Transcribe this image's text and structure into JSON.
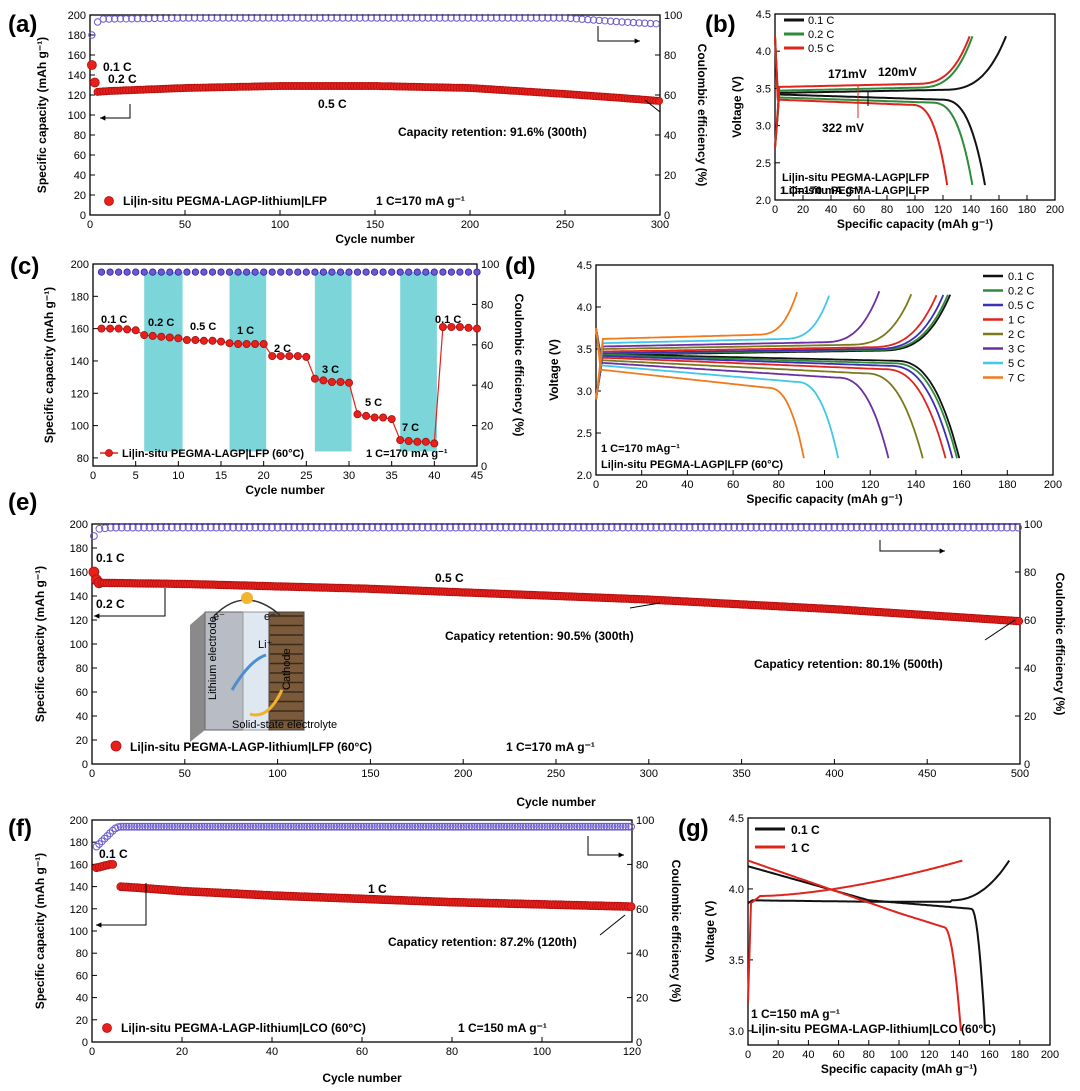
{
  "colors": {
    "capacity": "#e8201c",
    "coulombic": "#6a5acd",
    "teal": "#4fc7cc",
    "black": "#111111",
    "green": "#2e8b3a",
    "red": "#e0241c"
  },
  "chart_data": [
    {
      "id": "a",
      "type": "scatter",
      "panel_label": "(a)",
      "xlabel": "Cycle number",
      "ylabel": "Specific capacity (mAh g⁻¹)",
      "y2label": "Coulombic efficiency (%)",
      "xlim": [
        0,
        300
      ],
      "ylim": [
        0,
        200
      ],
      "y2lim": [
        0,
        100
      ],
      "xticks": [
        "0",
        "50",
        "100",
        "150",
        "200",
        "250",
        "300"
      ],
      "yticks": [
        "0",
        "20",
        "40",
        "60",
        "80",
        "100",
        "120",
        "140",
        "160",
        "180",
        "200"
      ],
      "y2ticks": [
        "0",
        "20",
        "40",
        "60",
        "80",
        "100"
      ],
      "capacity": {
        "x": [
          1,
          2,
          3,
          10,
          50,
          100,
          150,
          200,
          250,
          280,
          300
        ],
        "y": [
          150,
          142,
          123,
          124,
          127,
          129,
          129,
          127,
          121,
          117,
          114
        ]
      },
      "efficiency": {
        "x": [
          1,
          2,
          3,
          5,
          10,
          50,
          150,
          250,
          280,
          300
        ],
        "y": [
          90,
          87,
          95,
          98,
          98,
          98.5,
          98.5,
          98.5,
          96.5,
          95.5
        ]
      },
      "annotations": [
        "0.1 C",
        "0.2 C",
        "0.5 C",
        "Capacity retention: 91.6% (300th)"
      ],
      "legend": "Li|in-situ PEGMA-LAGP-lithium|LFP",
      "rate_note": "1 C=170 mA g⁻¹"
    },
    {
      "id": "b",
      "type": "line",
      "panel_label": "(b)",
      "xlabel": "Specific capacity (mAh g⁻¹)",
      "ylabel": "Voltage (V)",
      "xlim": [
        0,
        200
      ],
      "ylim": [
        2.0,
        4.5
      ],
      "xticks": [
        "0",
        "20",
        "40",
        "60",
        "80",
        "100",
        "120",
        "140",
        "160",
        "180",
        "200"
      ],
      "yticks": [
        "2.0",
        "2.5",
        "3.0",
        "3.5",
        "4.0",
        "4.5"
      ],
      "series": [
        {
          "name": "0.1 C",
          "color": "black",
          "charge_end": 165,
          "discharge_end": 150,
          "vch": 3.44,
          "vdis": 3.37
        },
        {
          "name": "0.2 C",
          "color": "green",
          "charge_end": 141,
          "discharge_end": 141,
          "vch": 3.47,
          "vdis": 3.33
        },
        {
          "name": "0.5 C",
          "color": "red",
          "charge_end": 139,
          "discharge_end": 123,
          "vch": 3.52,
          "vdis": 3.3
        }
      ],
      "annotations": [
        "171mV",
        "120mV",
        "322 mV"
      ],
      "cell_note": "Li|in-situ PEGMA-LAGP|LFP",
      "rate_note": "1 C=170 mA g⁻¹"
    },
    {
      "id": "c",
      "type": "scatter",
      "panel_label": "(c)",
      "xlabel": "Cycle number",
      "ylabel": "Specific capacity (mAh g⁻¹)",
      "y2label": "Coulombic efficiency (%)",
      "xlim": [
        0,
        45
      ],
      "ylim": [
        75,
        200
      ],
      "y2lim": [
        0,
        100
      ],
      "xticks": [
        "0",
        "5",
        "10",
        "15",
        "20",
        "25",
        "30",
        "35",
        "40",
        "45"
      ],
      "yticks": [
        "80",
        "100",
        "120",
        "140",
        "160",
        "180",
        "200"
      ],
      "y2ticks": [
        "0",
        "20",
        "40",
        "60",
        "80",
        "100"
      ],
      "rate_labels": [
        "0.1 C",
        "0.2 C",
        "0.5 C",
        "1 C",
        "2 C",
        "3 C",
        "5 C",
        "7 C",
        "0.1 C"
      ],
      "capacity_y": [
        160,
        160,
        160,
        159.5,
        159,
        156,
        155.5,
        155,
        154.5,
        154,
        153,
        153,
        152.5,
        152.5,
        152,
        151,
        150.5,
        150.5,
        150.5,
        150.5,
        143,
        143,
        143,
        143,
        142.5,
        129,
        128,
        127,
        127,
        126.5,
        107,
        106,
        105,
        105,
        104,
        91,
        90.5,
        90,
        90,
        89,
        161,
        161,
        161,
        160.5,
        160
      ],
      "efficiency_y": 96,
      "legend": "Li|in-situ PEGMA-LAGP|LFP (60°C)",
      "rate_note": "1 C=170 mA g⁻¹"
    },
    {
      "id": "d",
      "type": "line",
      "panel_label": "(d)",
      "xlabel": "Specific capacity (mAh g⁻¹)",
      "ylabel": "Voltage (V)",
      "xlim": [
        0,
        200
      ],
      "ylim": [
        2.0,
        4.5
      ],
      "xticks": [
        "0",
        "20",
        "40",
        "60",
        "80",
        "100",
        "120",
        "140",
        "160",
        "180",
        "200"
      ],
      "yticks": [
        "2.0",
        "2.5",
        "3.0",
        "3.5",
        "4.0",
        "4.5"
      ],
      "series": [
        {
          "name": "0.1 C",
          "color": "#111111",
          "cap": 159,
          "vch": 3.43,
          "vdis": 3.4
        },
        {
          "name": "0.2 C",
          "color": "#2e8b3a",
          "cap": 158,
          "vch": 3.44,
          "vdis": 3.39
        },
        {
          "name": "0.5 C",
          "color": "#3c2fb8",
          "cap": 156,
          "vch": 3.45,
          "vdis": 3.38
        },
        {
          "name": "1 C",
          "color": "#e0241c",
          "cap": 153,
          "vch": 3.47,
          "vdis": 3.36
        },
        {
          "name": "2 C",
          "color": "#7a7a1c",
          "cap": 143,
          "vch": 3.5,
          "vdis": 3.33
        },
        {
          "name": "3 C",
          "color": "#6b2fa3",
          "cap": 128,
          "vch": 3.53,
          "vdis": 3.3
        },
        {
          "name": "5 C",
          "color": "#41c7e8",
          "cap": 106,
          "vch": 3.57,
          "vdis": 3.27
        },
        {
          "name": "7 C",
          "color": "#f07a1e",
          "cap": 91,
          "vch": 3.62,
          "vdis": 3.22
        }
      ],
      "rate_note": "1 C=170 mAg⁻¹",
      "cell_note": "Li|in-situ PEGMA-LAGP|LFP (60°C)"
    },
    {
      "id": "e",
      "type": "scatter",
      "panel_label": "(e)",
      "xlabel": "Cycle number",
      "ylabel": "Specific capacity (mAh g⁻¹)",
      "y2label": "Coulombic efficiency (%)",
      "xlim": [
        0,
        500
      ],
      "ylim": [
        0,
        200
      ],
      "y2lim": [
        0,
        100
      ],
      "xticks": [
        "0",
        "50",
        "100",
        "150",
        "200",
        "250",
        "300",
        "350",
        "400",
        "450",
        "500"
      ],
      "yticks": [
        "0",
        "20",
        "40",
        "60",
        "80",
        "100",
        "120",
        "140",
        "160",
        "180",
        "200"
      ],
      "y2ticks": [
        "0",
        "20",
        "40",
        "60",
        "80",
        "100"
      ],
      "capacity": {
        "x": [
          1,
          2,
          3,
          50,
          100,
          150,
          200,
          250,
          300,
          350,
          400,
          450,
          500
        ],
        "y": [
          160,
          155,
          151,
          150,
          148,
          146,
          143,
          140,
          137,
          133,
          129,
          124,
          119
        ]
      },
      "efficiency": {
        "x": [
          1,
          2,
          4,
          10,
          100,
          200,
          300,
          400,
          500
        ],
        "y": [
          95,
          96,
          98,
          98.5,
          98.5,
          98.5,
          98.5,
          98.5,
          98.5
        ]
      },
      "annotations": [
        "0.1 C",
        "0.2 C",
        "0.5 C",
        "Capaticy retention: 90.5% (300th)",
        "Capaticy retention: 80.1% (500th)"
      ],
      "inset_labels": [
        "Lithium electrode",
        "Li⁺",
        "Solid-state electrolyte",
        "Cathode",
        "e⁻",
        "e⁻"
      ],
      "legend": "Li|in-situ PEGMA-LAGP-lithium|LFP (60°C)",
      "rate_note": "1 C=170 mA g⁻¹"
    },
    {
      "id": "f",
      "type": "scatter",
      "panel_label": "(f)",
      "xlabel": "Cycle number",
      "ylabel": "Specific capacity (mAh g⁻¹)",
      "y2label": "Coulombic efficiency (%)",
      "xlim": [
        0,
        120
      ],
      "ylim": [
        0,
        200
      ],
      "y2lim": [
        0,
        100
      ],
      "xticks": [
        "0",
        "20",
        "40",
        "60",
        "80",
        "100",
        "120"
      ],
      "yticks": [
        "0",
        "20",
        "40",
        "60",
        "80",
        "100",
        "120",
        "140",
        "160",
        "180",
        "200"
      ],
      "y2ticks": [
        "0",
        "20",
        "40",
        "60",
        "80",
        "100"
      ],
      "capacity": {
        "x": [
          1,
          2,
          3,
          4,
          5,
          6,
          10,
          20,
          40,
          60,
          80,
          100,
          120
        ],
        "y": [
          157,
          158,
          159,
          160,
          160,
          140,
          139,
          136,
          132,
          129,
          126,
          124,
          122
        ]
      },
      "efficiency": {
        "x": [
          1,
          2,
          3,
          4,
          5,
          6,
          10,
          60,
          120
        ],
        "y": [
          88,
          90,
          92,
          94,
          96,
          97,
          97,
          97,
          97
        ]
      },
      "annotations": [
        "0.1 C",
        "1 C",
        "Capaticy retention: 87.2% (120th)"
      ],
      "legend": "Li|in-situ PEGMA-LAGP-lithium|LCO (60°C)",
      "rate_note": "1 C=150 mA g⁻¹"
    },
    {
      "id": "g",
      "type": "line",
      "panel_label": "(g)",
      "xlabel": "Specific capacity (mAh g⁻¹)",
      "ylabel": "Voltage (V)",
      "xlim": [
        0,
        200
      ],
      "ylim": [
        2.9,
        4.5
      ],
      "xticks": [
        "0",
        "20",
        "40",
        "60",
        "80",
        "100",
        "120",
        "140",
        "160",
        "180",
        "200"
      ],
      "yticks": [
        "3.0",
        "3.5",
        "4.0",
        "4.5"
      ],
      "series": [
        {
          "name": "0.1 C",
          "color": "black",
          "charge_end": 173,
          "discharge_end": 157
        },
        {
          "name": "1 C",
          "color": "red",
          "charge_end": 142,
          "discharge_end": 141
        }
      ],
      "rate_note": "1 C=150 mA g⁻¹",
      "cell_note": "Li|in-situ PEGMA-LAGP-lithium|LCO (60°C)"
    }
  ]
}
